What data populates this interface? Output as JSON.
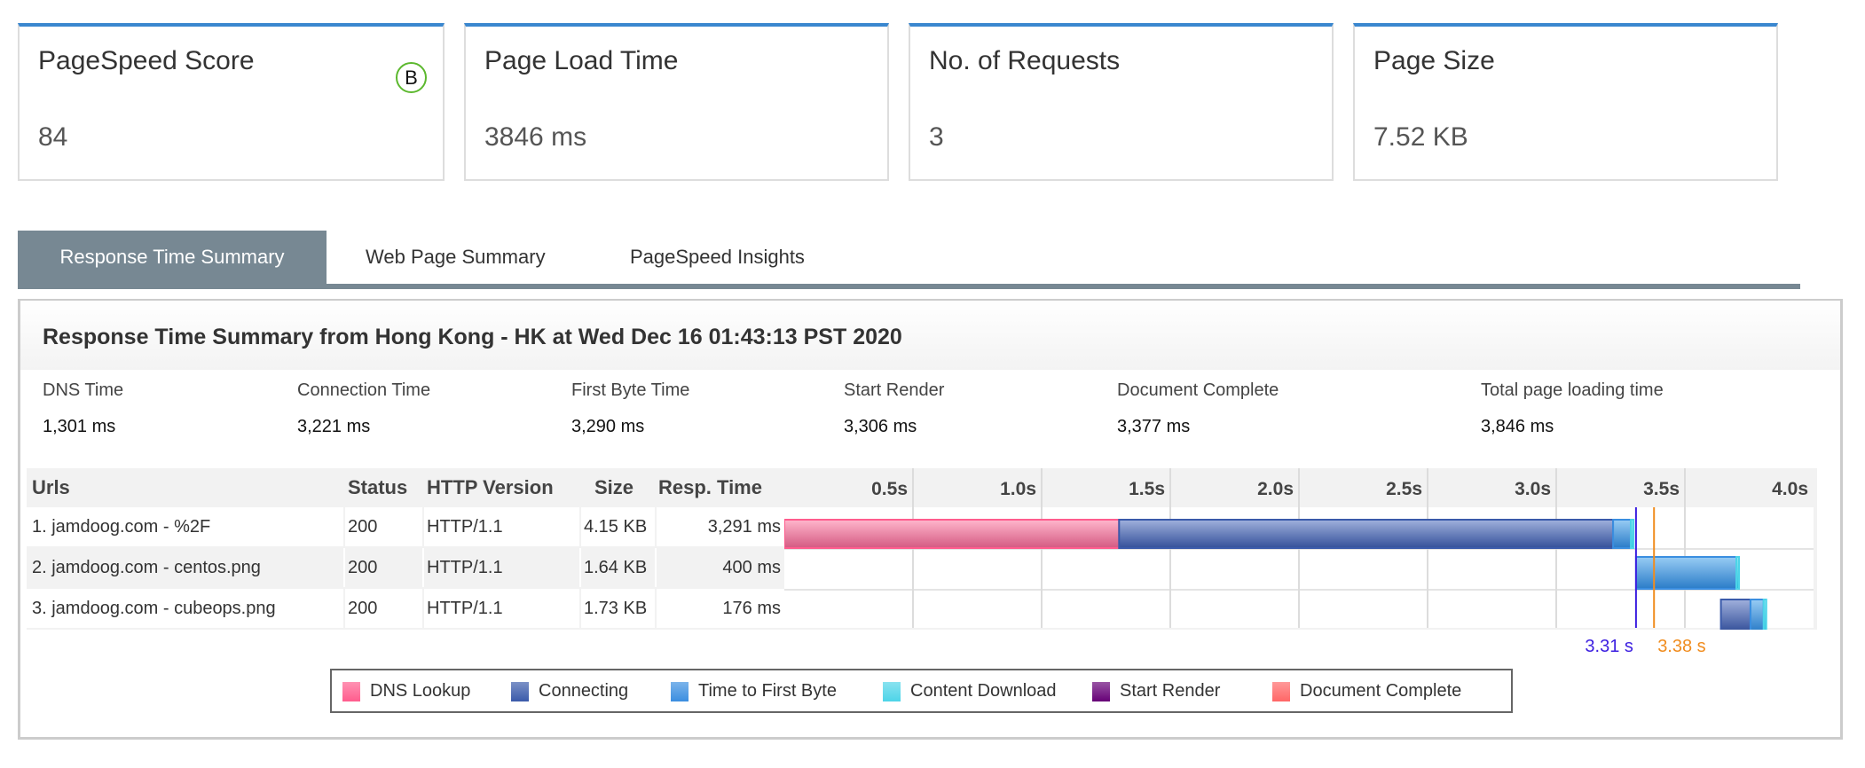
{
  "cards": [
    {
      "title": "PageSpeed Score",
      "value": "84",
      "grade": "B"
    },
    {
      "title": "Page Load Time",
      "value": "3846 ms"
    },
    {
      "title": "No. of Requests",
      "value": "3"
    },
    {
      "title": "Page Size",
      "value": "7.52 KB"
    }
  ],
  "tabs": [
    {
      "label": "Response Time Summary",
      "active": true
    },
    {
      "label": "Web Page Summary"
    },
    {
      "label": "PageSpeed Insights"
    }
  ],
  "panel": {
    "title": "Response Time Summary from Hong Kong - HK at Wed Dec 16 01:43:13 PST 2020",
    "metrics": [
      {
        "label": "DNS Time",
        "value": "1,301 ms"
      },
      {
        "label": "Connection Time",
        "value": "3,221 ms"
      },
      {
        "label": "First Byte Time",
        "value": "3,290 ms"
      },
      {
        "label": "Start Render",
        "value": "3,306 ms"
      },
      {
        "label": "Document Complete",
        "value": "3,377 ms"
      },
      {
        "label": "Total page loading time",
        "value": "3,846 ms"
      }
    ]
  },
  "table": {
    "headers": [
      "Urls",
      "Status",
      "HTTP Version",
      "Size",
      "Resp. Time"
    ],
    "rows": [
      [
        "1. jamdoog.com - %2F",
        "200",
        "HTTP/1.1",
        "4.15 KB",
        "3,291 ms"
      ],
      [
        "2. jamdoog.com - centos.png",
        "200",
        "HTTP/1.1",
        "1.64 KB",
        "400 ms"
      ],
      [
        "3. jamdoog.com - cubeops.png",
        "200",
        "HTTP/1.1",
        "1.73 KB",
        "176 ms"
      ]
    ]
  },
  "chart_data": {
    "type": "waterfall",
    "x_unit": "s",
    "xlim": [
      0,
      4.0
    ],
    "tick_labels": [
      "0.5s",
      "1.0s",
      "1.5s",
      "2.0s",
      "2.5s",
      "3.0s",
      "3.5s",
      "4.0s"
    ],
    "ticks": [
      0.5,
      1.0,
      1.5,
      2.0,
      2.5,
      3.0,
      3.5,
      4.0
    ],
    "grid": true,
    "rows": [
      {
        "segments": [
          {
            "phase": "dns",
            "start": 0,
            "end": 1.301
          },
          {
            "phase": "connect",
            "start": 1.301,
            "end": 3.221
          },
          {
            "phase": "ttfb",
            "start": 3.221,
            "end": 3.29
          },
          {
            "phase": "download",
            "start": 3.29,
            "end": 3.291
          }
        ]
      },
      {
        "segments": [
          {
            "phase": "ttfb",
            "start": 3.31,
            "end": 3.7
          },
          {
            "phase": "download",
            "start": 3.7,
            "end": 3.71
          }
        ]
      },
      {
        "segments": [
          {
            "phase": "connect",
            "start": 3.64,
            "end": 3.755
          },
          {
            "phase": "ttfb",
            "start": 3.755,
            "end": 3.806
          },
          {
            "phase": "download",
            "start": 3.806,
            "end": 3.816
          }
        ]
      }
    ],
    "markers": [
      {
        "name": "start-render",
        "value": 3.31,
        "label": "3.31 s",
        "color": "#3b1ee0"
      },
      {
        "name": "document-complete",
        "value": 3.38,
        "label": "3.38 s",
        "color": "#f08c1e"
      }
    ],
    "legend": [
      {
        "label": "DNS Lookup",
        "color": "#ff5c8d"
      },
      {
        "label": "Connecting",
        "color": "#3a5aaa"
      },
      {
        "label": "Time to First Byte",
        "color": "#3a8ee0"
      },
      {
        "label": "Content Download",
        "color": "#4dd4e8"
      },
      {
        "label": "Start Render",
        "color": "#660077"
      },
      {
        "label": "Document Complete",
        "color": "#ff6666"
      }
    ],
    "legend_position": "bottom"
  }
}
